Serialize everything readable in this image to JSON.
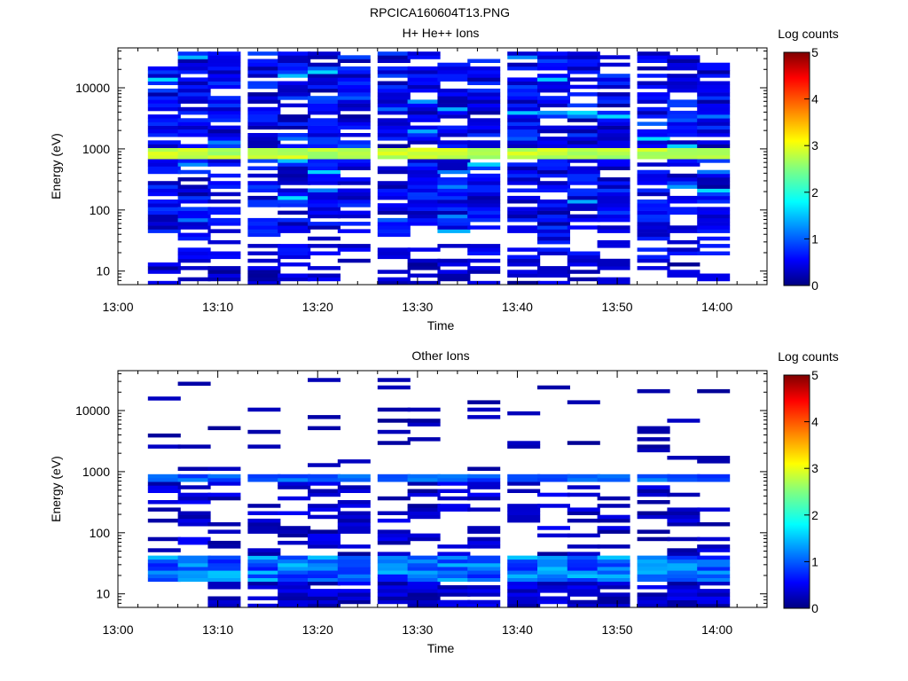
{
  "figure_title": "RPCICA160604T13.PNG",
  "chart_data": [
    {
      "type": "heatmap",
      "title": "H+ He++ Ions",
      "xlabel": "Time",
      "ylabel": "Energy (eV)",
      "x_range": [
        "13:00",
        "14:05"
      ],
      "y_scale": "log",
      "y_range": [
        6,
        45000
      ],
      "x_ticks": [
        "13:00",
        "13:10",
        "13:20",
        "13:30",
        "13:40",
        "13:50",
        "14:00"
      ],
      "y_ticks": [
        "10",
        "100",
        "1000",
        "10000"
      ],
      "colorbar": {
        "label": "Log counts",
        "min": 0,
        "max": 5,
        "ticks": [
          "0",
          "1",
          "2",
          "3",
          "4",
          "5"
        ]
      },
      "time_columns": [
        "13:03",
        "13:06",
        "13:09",
        "13:13",
        "13:16",
        "13:19",
        "13:22",
        "13:26",
        "13:29",
        "13:32",
        "13:35",
        "13:39",
        "13:42",
        "13:45",
        "13:48",
        "13:52",
        "13:55",
        "13:58"
      ],
      "description": "Dense ion counts across 40 eV - 40 keV, strong band near 800-1000 eV (~3 log counts), sparse low-energy counts below 40 eV",
      "seed": 7
    },
    {
      "type": "heatmap",
      "title": "Other Ions",
      "xlabel": "Time",
      "ylabel": "Energy (eV)",
      "x_range": [
        "13:00",
        "14:05"
      ],
      "y_scale": "log",
      "y_range": [
        6,
        45000
      ],
      "x_ticks": [
        "13:00",
        "13:10",
        "13:20",
        "13:30",
        "13:40",
        "13:50",
        "14:00"
      ],
      "y_ticks": [
        "10",
        "100",
        "1000",
        "10000"
      ],
      "colorbar": {
        "label": "Log counts",
        "min": 0,
        "max": 5,
        "ticks": [
          "0",
          "1",
          "2",
          "3",
          "4",
          "5"
        ]
      },
      "time_columns": [
        "13:03",
        "13:06",
        "13:09",
        "13:13",
        "13:16",
        "13:19",
        "13:22",
        "13:26",
        "13:29",
        "13:32",
        "13:35",
        "13:39",
        "13:42",
        "13:45",
        "13:48",
        "13:52",
        "13:55",
        "13:58"
      ],
      "description": "Sparse high-energy counts, band near 800-900 eV (~1 log count), dense band 20-40 eV (~1.5 log counts)",
      "seed": 13
    }
  ]
}
